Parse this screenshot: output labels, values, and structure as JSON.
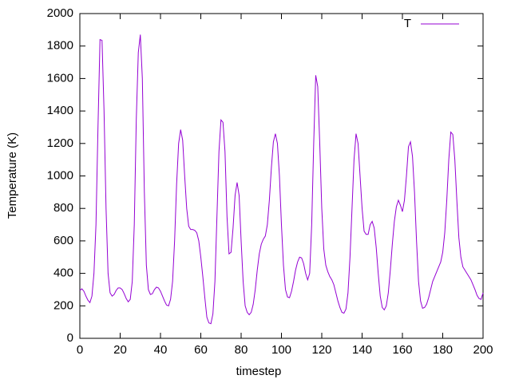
{
  "chart_data": {
    "type": "line",
    "xlabel": "timestep",
    "ylabel": "Temperature (K)",
    "xlim": [
      0,
      200
    ],
    "ylim": [
      0,
      2000
    ],
    "xticks": [
      0,
      20,
      40,
      60,
      80,
      100,
      120,
      140,
      160,
      180,
      200
    ],
    "yticks": [
      0,
      200,
      400,
      600,
      800,
      1000,
      1200,
      1400,
      1600,
      1800,
      2000
    ],
    "legend": "top-right",
    "grid": false,
    "x": [
      0,
      1,
      2,
      3,
      4,
      5,
      6,
      7,
      8,
      9,
      10,
      11,
      12,
      13,
      14,
      15,
      16,
      17,
      18,
      19,
      20,
      21,
      22,
      23,
      24,
      25,
      26,
      27,
      28,
      29,
      30,
      31,
      32,
      33,
      34,
      35,
      36,
      37,
      38,
      39,
      40,
      41,
      42,
      43,
      44,
      45,
      46,
      47,
      48,
      49,
      50,
      51,
      52,
      53,
      54,
      55,
      56,
      57,
      58,
      59,
      60,
      61,
      62,
      63,
      64,
      65,
      66,
      67,
      68,
      69,
      70,
      71,
      72,
      73,
      74,
      75,
      76,
      77,
      78,
      79,
      80,
      81,
      82,
      83,
      84,
      85,
      86,
      87,
      88,
      89,
      90,
      91,
      92,
      93,
      94,
      95,
      96,
      97,
      98,
      99,
      100,
      101,
      102,
      103,
      104,
      105,
      106,
      107,
      108,
      109,
      110,
      111,
      112,
      113,
      114,
      115,
      116,
      117,
      118,
      119,
      120,
      121,
      122,
      123,
      124,
      125,
      126,
      127,
      128,
      129,
      130,
      131,
      132,
      133,
      134,
      135,
      136,
      137,
      138,
      139,
      140,
      141,
      142,
      143,
      144,
      145,
      146,
      147,
      148,
      149,
      150,
      151,
      152,
      153,
      154,
      155,
      156,
      157,
      158,
      159,
      160,
      161,
      162,
      163,
      164,
      165,
      166,
      167,
      168,
      169,
      170,
      171,
      172,
      173,
      174,
      175,
      176,
      177,
      178,
      179,
      180,
      181,
      182,
      183,
      184,
      185,
      186,
      187,
      188,
      189,
      190,
      191,
      192,
      193,
      194,
      195,
      196,
      197,
      198,
      199,
      200
    ],
    "series": [
      {
        "name": "T",
        "color": "#9400d3",
        "values": [
          295,
          305,
          290,
          260,
          235,
          220,
          260,
          400,
          700,
          1300,
          1840,
          1835,
          1400,
          800,
          400,
          280,
          260,
          270,
          295,
          310,
          310,
          300,
          275,
          245,
          225,
          240,
          350,
          700,
          1350,
          1760,
          1870,
          1600,
          900,
          450,
          300,
          270,
          275,
          300,
          315,
          310,
          290,
          260,
          230,
          205,
          200,
          240,
          350,
          600,
          950,
          1200,
          1285,
          1220,
          1000,
          800,
          690,
          670,
          670,
          665,
          650,
          600,
          500,
          380,
          250,
          130,
          95,
          90,
          150,
          350,
          750,
          1150,
          1345,
          1330,
          1150,
          750,
          520,
          530,
          680,
          880,
          960,
          880,
          600,
          350,
          200,
          160,
          145,
          160,
          210,
          300,
          420,
          520,
          580,
          610,
          630,
          700,
          850,
          1050,
          1210,
          1260,
          1200,
          1000,
          700,
          450,
          300,
          255,
          250,
          290,
          350,
          420,
          470,
          500,
          495,
          460,
          400,
          360,
          400,
          700,
          1200,
          1620,
          1550,
          1200,
          800,
          550,
          450,
          410,
          380,
          360,
          330,
          280,
          230,
          190,
          160,
          155,
          180,
          280,
          500,
          800,
          1100,
          1260,
          1200,
          1000,
          800,
          660,
          640,
          640,
          700,
          720,
          680,
          560,
          400,
          260,
          190,
          175,
          200,
          280,
          420,
          580,
          720,
          810,
          850,
          820,
          780,
          850,
          1000,
          1180,
          1210,
          1120,
          900,
          600,
          350,
          230,
          185,
          190,
          210,
          250,
          300,
          350,
          380,
          410,
          440,
          470,
          530,
          650,
          850,
          1100,
          1270,
          1255,
          1100,
          850,
          620,
          500,
          440,
          420,
          400,
          380,
          360,
          330,
          300,
          265,
          245,
          240,
          280
        ]
      }
    ]
  }
}
